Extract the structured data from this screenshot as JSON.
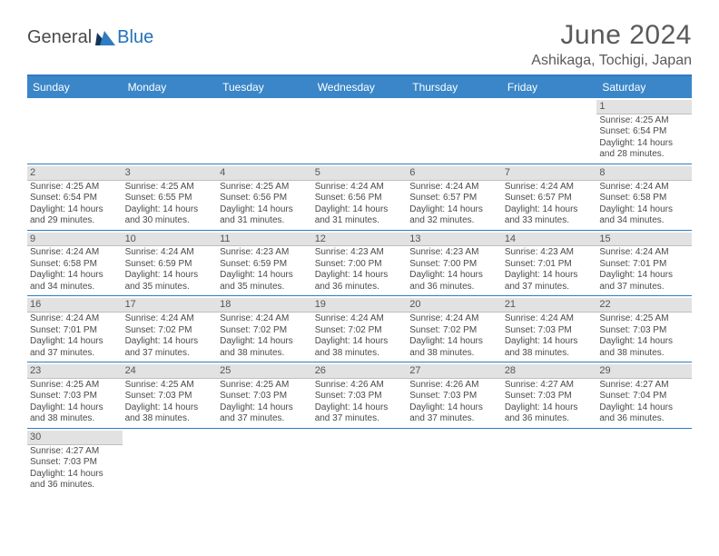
{
  "brand": {
    "part1": "General",
    "part2": "Blue",
    "triangle_color": "#2172b8"
  },
  "title": "June 2024",
  "location": "Ashikaga, Tochigi, Japan",
  "header_bg": "#3a86c8",
  "header_text_color": "#ffffff",
  "row_divider_color": "#2f7cc0",
  "daynum_bg": "#e2e2e2",
  "text_color": "#4a4a4a",
  "weekdays": [
    "Sunday",
    "Monday",
    "Tuesday",
    "Wednesday",
    "Thursday",
    "Friday",
    "Saturday"
  ],
  "weeks": [
    [
      null,
      null,
      null,
      null,
      null,
      null,
      {
        "n": "1",
        "sr": "Sunrise: 4:25 AM",
        "ss": "Sunset: 6:54 PM",
        "d1": "Daylight: 14 hours",
        "d2": "and 28 minutes."
      }
    ],
    [
      {
        "n": "2",
        "sr": "Sunrise: 4:25 AM",
        "ss": "Sunset: 6:54 PM",
        "d1": "Daylight: 14 hours",
        "d2": "and 29 minutes."
      },
      {
        "n": "3",
        "sr": "Sunrise: 4:25 AM",
        "ss": "Sunset: 6:55 PM",
        "d1": "Daylight: 14 hours",
        "d2": "and 30 minutes."
      },
      {
        "n": "4",
        "sr": "Sunrise: 4:25 AM",
        "ss": "Sunset: 6:56 PM",
        "d1": "Daylight: 14 hours",
        "d2": "and 31 minutes."
      },
      {
        "n": "5",
        "sr": "Sunrise: 4:24 AM",
        "ss": "Sunset: 6:56 PM",
        "d1": "Daylight: 14 hours",
        "d2": "and 31 minutes."
      },
      {
        "n": "6",
        "sr": "Sunrise: 4:24 AM",
        "ss": "Sunset: 6:57 PM",
        "d1": "Daylight: 14 hours",
        "d2": "and 32 minutes."
      },
      {
        "n": "7",
        "sr": "Sunrise: 4:24 AM",
        "ss": "Sunset: 6:57 PM",
        "d1": "Daylight: 14 hours",
        "d2": "and 33 minutes."
      },
      {
        "n": "8",
        "sr": "Sunrise: 4:24 AM",
        "ss": "Sunset: 6:58 PM",
        "d1": "Daylight: 14 hours",
        "d2": "and 34 minutes."
      }
    ],
    [
      {
        "n": "9",
        "sr": "Sunrise: 4:24 AM",
        "ss": "Sunset: 6:58 PM",
        "d1": "Daylight: 14 hours",
        "d2": "and 34 minutes."
      },
      {
        "n": "10",
        "sr": "Sunrise: 4:24 AM",
        "ss": "Sunset: 6:59 PM",
        "d1": "Daylight: 14 hours",
        "d2": "and 35 minutes."
      },
      {
        "n": "11",
        "sr": "Sunrise: 4:23 AM",
        "ss": "Sunset: 6:59 PM",
        "d1": "Daylight: 14 hours",
        "d2": "and 35 minutes."
      },
      {
        "n": "12",
        "sr": "Sunrise: 4:23 AM",
        "ss": "Sunset: 7:00 PM",
        "d1": "Daylight: 14 hours",
        "d2": "and 36 minutes."
      },
      {
        "n": "13",
        "sr": "Sunrise: 4:23 AM",
        "ss": "Sunset: 7:00 PM",
        "d1": "Daylight: 14 hours",
        "d2": "and 36 minutes."
      },
      {
        "n": "14",
        "sr": "Sunrise: 4:23 AM",
        "ss": "Sunset: 7:01 PM",
        "d1": "Daylight: 14 hours",
        "d2": "and 37 minutes."
      },
      {
        "n": "15",
        "sr": "Sunrise: 4:24 AM",
        "ss": "Sunset: 7:01 PM",
        "d1": "Daylight: 14 hours",
        "d2": "and 37 minutes."
      }
    ],
    [
      {
        "n": "16",
        "sr": "Sunrise: 4:24 AM",
        "ss": "Sunset: 7:01 PM",
        "d1": "Daylight: 14 hours",
        "d2": "and 37 minutes."
      },
      {
        "n": "17",
        "sr": "Sunrise: 4:24 AM",
        "ss": "Sunset: 7:02 PM",
        "d1": "Daylight: 14 hours",
        "d2": "and 37 minutes."
      },
      {
        "n": "18",
        "sr": "Sunrise: 4:24 AM",
        "ss": "Sunset: 7:02 PM",
        "d1": "Daylight: 14 hours",
        "d2": "and 38 minutes."
      },
      {
        "n": "19",
        "sr": "Sunrise: 4:24 AM",
        "ss": "Sunset: 7:02 PM",
        "d1": "Daylight: 14 hours",
        "d2": "and 38 minutes."
      },
      {
        "n": "20",
        "sr": "Sunrise: 4:24 AM",
        "ss": "Sunset: 7:02 PM",
        "d1": "Daylight: 14 hours",
        "d2": "and 38 minutes."
      },
      {
        "n": "21",
        "sr": "Sunrise: 4:24 AM",
        "ss": "Sunset: 7:03 PM",
        "d1": "Daylight: 14 hours",
        "d2": "and 38 minutes."
      },
      {
        "n": "22",
        "sr": "Sunrise: 4:25 AM",
        "ss": "Sunset: 7:03 PM",
        "d1": "Daylight: 14 hours",
        "d2": "and 38 minutes."
      }
    ],
    [
      {
        "n": "23",
        "sr": "Sunrise: 4:25 AM",
        "ss": "Sunset: 7:03 PM",
        "d1": "Daylight: 14 hours",
        "d2": "and 38 minutes."
      },
      {
        "n": "24",
        "sr": "Sunrise: 4:25 AM",
        "ss": "Sunset: 7:03 PM",
        "d1": "Daylight: 14 hours",
        "d2": "and 38 minutes."
      },
      {
        "n": "25",
        "sr": "Sunrise: 4:25 AM",
        "ss": "Sunset: 7:03 PM",
        "d1": "Daylight: 14 hours",
        "d2": "and 37 minutes."
      },
      {
        "n": "26",
        "sr": "Sunrise: 4:26 AM",
        "ss": "Sunset: 7:03 PM",
        "d1": "Daylight: 14 hours",
        "d2": "and 37 minutes."
      },
      {
        "n": "27",
        "sr": "Sunrise: 4:26 AM",
        "ss": "Sunset: 7:03 PM",
        "d1": "Daylight: 14 hours",
        "d2": "and 37 minutes."
      },
      {
        "n": "28",
        "sr": "Sunrise: 4:27 AM",
        "ss": "Sunset: 7:03 PM",
        "d1": "Daylight: 14 hours",
        "d2": "and 36 minutes."
      },
      {
        "n": "29",
        "sr": "Sunrise: 4:27 AM",
        "ss": "Sunset: 7:04 PM",
        "d1": "Daylight: 14 hours",
        "d2": "and 36 minutes."
      }
    ],
    [
      {
        "n": "30",
        "sr": "Sunrise: 4:27 AM",
        "ss": "Sunset: 7:03 PM",
        "d1": "Daylight: 14 hours",
        "d2": "and 36 minutes."
      },
      null,
      null,
      null,
      null,
      null,
      null
    ]
  ]
}
